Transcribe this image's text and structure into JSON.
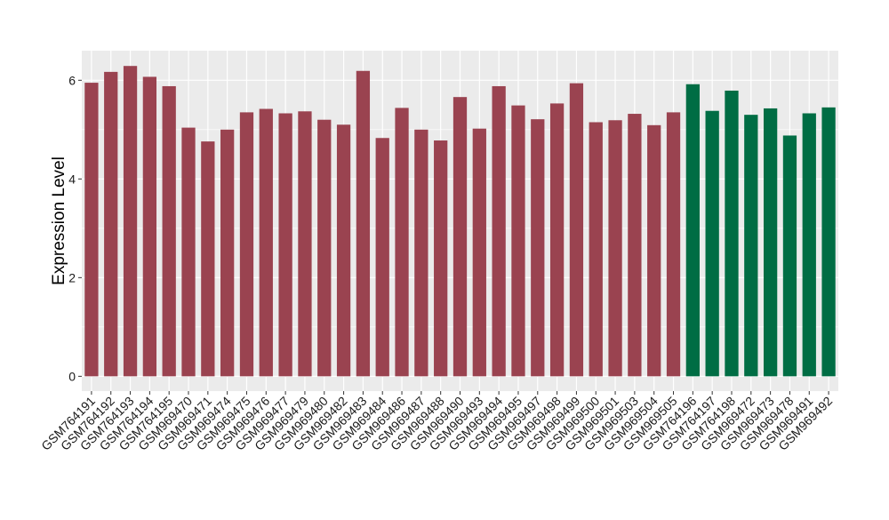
{
  "chart_data": {
    "type": "bar",
    "title": "",
    "xlabel": "",
    "ylabel": "Expression Level",
    "ylim": [
      -0.3,
      6.6
    ],
    "yticks": [
      0,
      2,
      4,
      6
    ],
    "grid": true,
    "legend": "none",
    "colors": {
      "group1": "#9a4350",
      "group2": "#006d44",
      "panel_bg": "#ebebeb",
      "grid": "#ffffff"
    },
    "categories": [
      "GSM764191",
      "GSM764192",
      "GSM764193",
      "GSM764194",
      "GSM764195",
      "GSM969470",
      "GSM969471",
      "GSM969474",
      "GSM969475",
      "GSM969476",
      "GSM969477",
      "GSM969479",
      "GSM969480",
      "GSM969482",
      "GSM969483",
      "GSM969484",
      "GSM969486",
      "GSM969487",
      "GSM969488",
      "GSM969490",
      "GSM969493",
      "GSM969494",
      "GSM969495",
      "GSM969497",
      "GSM969498",
      "GSM969499",
      "GSM969500",
      "GSM969501",
      "GSM969503",
      "GSM969504",
      "GSM969505",
      "GSM764196",
      "GSM764197",
      "GSM764198",
      "GSM969472",
      "GSM969473",
      "GSM969478",
      "GSM969491",
      "GSM969492"
    ],
    "values": [
      5.95,
      6.17,
      6.29,
      6.07,
      5.88,
      5.04,
      4.76,
      5.0,
      5.35,
      5.42,
      5.33,
      5.37,
      5.2,
      5.1,
      6.19,
      4.83,
      5.44,
      5.0,
      4.78,
      5.66,
      5.02,
      5.88,
      5.49,
      5.21,
      5.53,
      5.94,
      5.15,
      5.19,
      5.32,
      5.09,
      5.35,
      5.92,
      5.38,
      5.79,
      5.3,
      5.43,
      4.88,
      5.33,
      5.45
    ],
    "groups": [
      "group1",
      "group1",
      "group1",
      "group1",
      "group1",
      "group1",
      "group1",
      "group1",
      "group1",
      "group1",
      "group1",
      "group1",
      "group1",
      "group1",
      "group1",
      "group1",
      "group1",
      "group1",
      "group1",
      "group1",
      "group1",
      "group1",
      "group1",
      "group1",
      "group1",
      "group1",
      "group1",
      "group1",
      "group1",
      "group1",
      "group1",
      "group2",
      "group2",
      "group2",
      "group2",
      "group2",
      "group2",
      "group2",
      "group2"
    ]
  }
}
